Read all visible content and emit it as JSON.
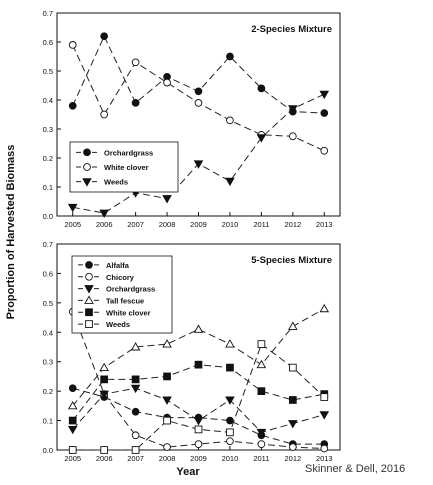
{
  "shared": {
    "ylabel": "Proportion of Harvested Biomass",
    "xlabel": "Year",
    "credit": "Skinner & Dell, 2016",
    "x": [
      2005,
      2006,
      2007,
      2008,
      2009,
      2010,
      2011,
      2012,
      2013
    ],
    "x_ticks": [
      "2005",
      "2006",
      "2007",
      "2008",
      "2009",
      "2010",
      "2011",
      "2012",
      "2013"
    ],
    "y_ticks": [
      "0.0",
      "0.1",
      "0.2",
      "0.3",
      "0.4",
      "0.5",
      "0.6",
      "0.7"
    ]
  },
  "chart_data": [
    {
      "type": "line",
      "title": "2-Species Mixture",
      "ylim": [
        0,
        0.7
      ],
      "legend_position": "bottom-left",
      "series": [
        {
          "name": "Orchardgrass",
          "marker": "circle-filled",
          "values": [
            0.38,
            0.62,
            0.39,
            0.48,
            0.43,
            0.55,
            0.44,
            0.36,
            0.355
          ]
        },
        {
          "name": "White clover",
          "marker": "circle-open",
          "values": [
            0.59,
            0.35,
            0.53,
            0.46,
            0.39,
            0.33,
            0.28,
            0.275,
            0.225
          ]
        },
        {
          "name": "Weeds",
          "marker": "triangle-down-filled",
          "values": [
            0.03,
            0.01,
            0.08,
            0.06,
            0.18,
            0.12,
            0.27,
            0.37,
            0.42
          ]
        }
      ]
    },
    {
      "type": "line",
      "title": "5-Species Mixture",
      "ylim": [
        0,
        0.7
      ],
      "legend_position": "top-left",
      "series": [
        {
          "name": "Alfalfa",
          "marker": "circle-filled",
          "values": [
            0.21,
            0.18,
            0.13,
            0.11,
            0.11,
            0.1,
            0.05,
            0.02,
            0.02
          ]
        },
        {
          "name": "Chicory",
          "marker": "circle-open",
          "values": [
            0.47,
            0.19,
            0.05,
            0.01,
            0.02,
            0.03,
            0.02,
            0.01,
            0.005
          ]
        },
        {
          "name": "Orchardgrass",
          "marker": "triangle-down-filled",
          "values": [
            0.07,
            0.19,
            0.21,
            0.17,
            0.1,
            0.17,
            0.06,
            0.09,
            0.12
          ]
        },
        {
          "name": "Tall fescue",
          "marker": "triangle-up-open",
          "values": [
            0.15,
            0.28,
            0.35,
            0.36,
            0.41,
            0.36,
            0.29,
            0.42,
            0.48
          ]
        },
        {
          "name": "White clover",
          "marker": "square-filled",
          "values": [
            0.1,
            0.24,
            0.24,
            0.25,
            0.29,
            0.28,
            0.2,
            0.17,
            0.19
          ]
        },
        {
          "name": "Weeds",
          "marker": "square-open",
          "values": [
            0.0,
            0.0,
            0.0,
            0.1,
            0.07,
            0.06,
            0.36,
            0.28,
            0.18
          ]
        }
      ]
    }
  ]
}
